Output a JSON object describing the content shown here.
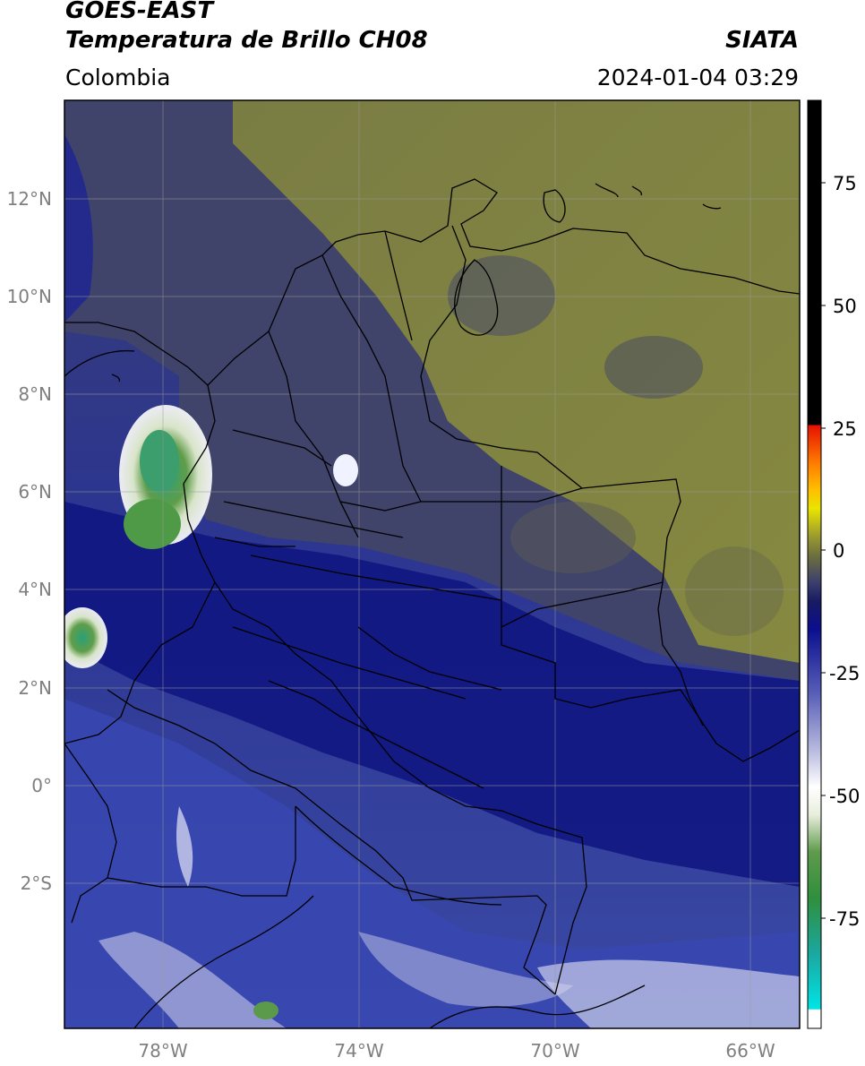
{
  "header": {
    "satellite": "GOES-EAST",
    "product": "Temperatura de Brillo CH08",
    "source": "SIATA",
    "region": "Colombia",
    "datetime": "2024-01-04 03:29"
  },
  "map": {
    "lat_ticks": [
      "12°N",
      "10°N",
      "8°N",
      "6°N",
      "4°N",
      "2°N",
      "0°",
      "2°S"
    ],
    "lon_ticks": [
      "78°W",
      "74°W",
      "70°W",
      "66°W"
    ]
  },
  "colorbar": {
    "ticks": [
      "75",
      "50",
      "25",
      "0",
      "-25",
      "-50",
      "-75"
    ],
    "colors": {
      "very_cold": "#ffffff",
      "cyan": "#00d8d8",
      "green": "#2d8a2d",
      "white": "#ffffff",
      "blue": "#0c0f82",
      "gray": "#3e4170",
      "olive": "#8f9434",
      "yellow": "#e7e400",
      "orange": "#ff8c00",
      "red": "#e80000",
      "black": "#000000"
    }
  },
  "colors": {
    "ocean_blue": "#2b3a9f",
    "deep_blue": "#0d1278",
    "land_gray": "#3f426a",
    "olive": "#7b7d3e",
    "border": "#000000",
    "grid": "#9a9a9a"
  }
}
